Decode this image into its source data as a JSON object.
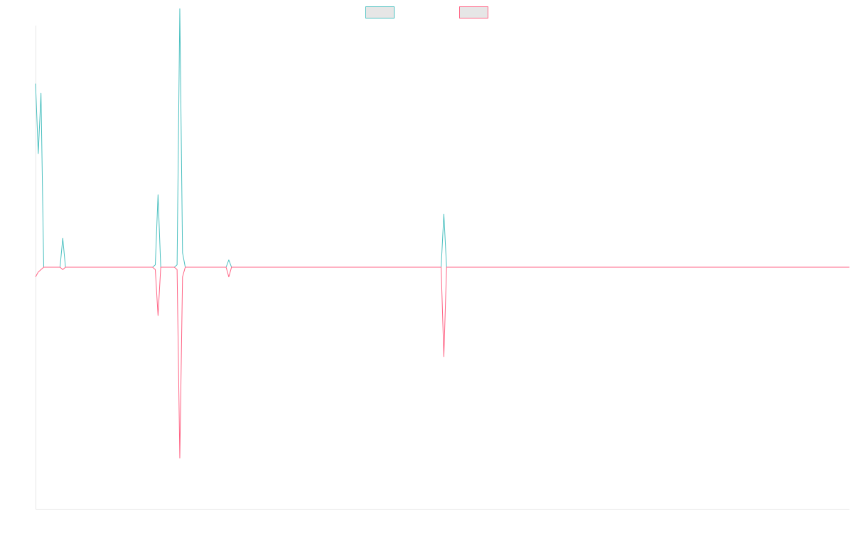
{
  "chart_data": {
    "type": "line",
    "title": "",
    "xlabel": "",
    "ylabel": "",
    "grid": false,
    "legend": "top-center",
    "ylim": [
      -100,
      100
    ],
    "xlim": [
      0,
      299
    ],
    "series": [
      {
        "color": "#4bc0c0",
        "points": [
          [
            0,
            76
          ],
          [
            1,
            47
          ],
          [
            2,
            72
          ],
          [
            3,
            0
          ],
          [
            9,
            0
          ],
          [
            10,
            12
          ],
          [
            11,
            0
          ],
          [
            43,
            0
          ],
          [
            44,
            1
          ],
          [
            45,
            30
          ],
          [
            46,
            0
          ],
          [
            51,
            0
          ],
          [
            52,
            1
          ],
          [
            53,
            107
          ],
          [
            54,
            6
          ],
          [
            55,
            0
          ],
          [
            70,
            0
          ],
          [
            71,
            3
          ],
          [
            72,
            0
          ],
          [
            149,
            0
          ],
          [
            150,
            22
          ],
          [
            151,
            0
          ],
          [
            299,
            0
          ]
        ]
      },
      {
        "color": "#ff6384",
        "points": [
          [
            0,
            -4
          ],
          [
            1,
            -2
          ],
          [
            2,
            -1
          ],
          [
            3,
            0
          ],
          [
            9,
            0
          ],
          [
            10,
            -1
          ],
          [
            11,
            0
          ],
          [
            43,
            0
          ],
          [
            44,
            -1
          ],
          [
            45,
            -20
          ],
          [
            46,
            0
          ],
          [
            51,
            0
          ],
          [
            52,
            -1
          ],
          [
            53,
            -79
          ],
          [
            54,
            -4
          ],
          [
            55,
            0
          ],
          [
            70,
            0
          ],
          [
            71,
            -4
          ],
          [
            72,
            0
          ],
          [
            149,
            0
          ],
          [
            150,
            -37
          ],
          [
            151,
            0
          ],
          [
            299,
            0
          ]
        ]
      }
    ]
  }
}
